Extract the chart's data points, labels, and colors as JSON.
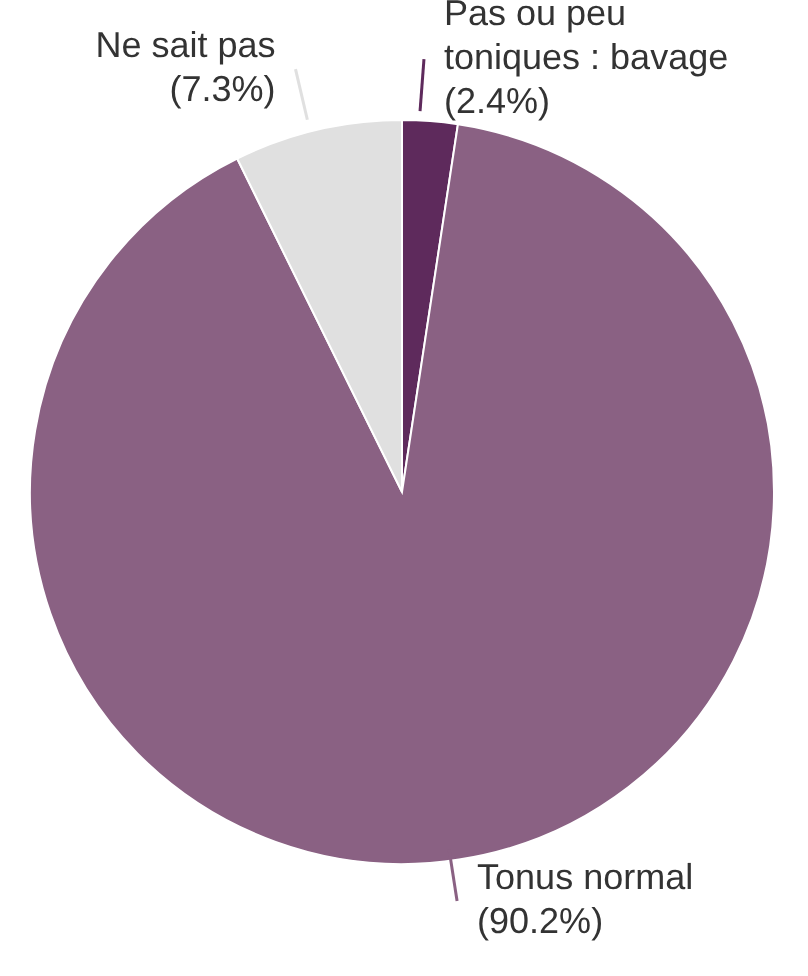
{
  "chart_data": {
    "type": "pie",
    "categories": [
      "Pas ou peu toniques : bavage",
      "Tonus normal",
      "Ne sait pas"
    ],
    "values": [
      2.4,
      90.2,
      7.3
    ],
    "colors": [
      "#5e2a5c",
      "#8a6183",
      "#e0e0e0"
    ],
    "value_labels": [
      "(2.4%)",
      "(90.2%)",
      "(7.3%)"
    ],
    "legend": false
  }
}
